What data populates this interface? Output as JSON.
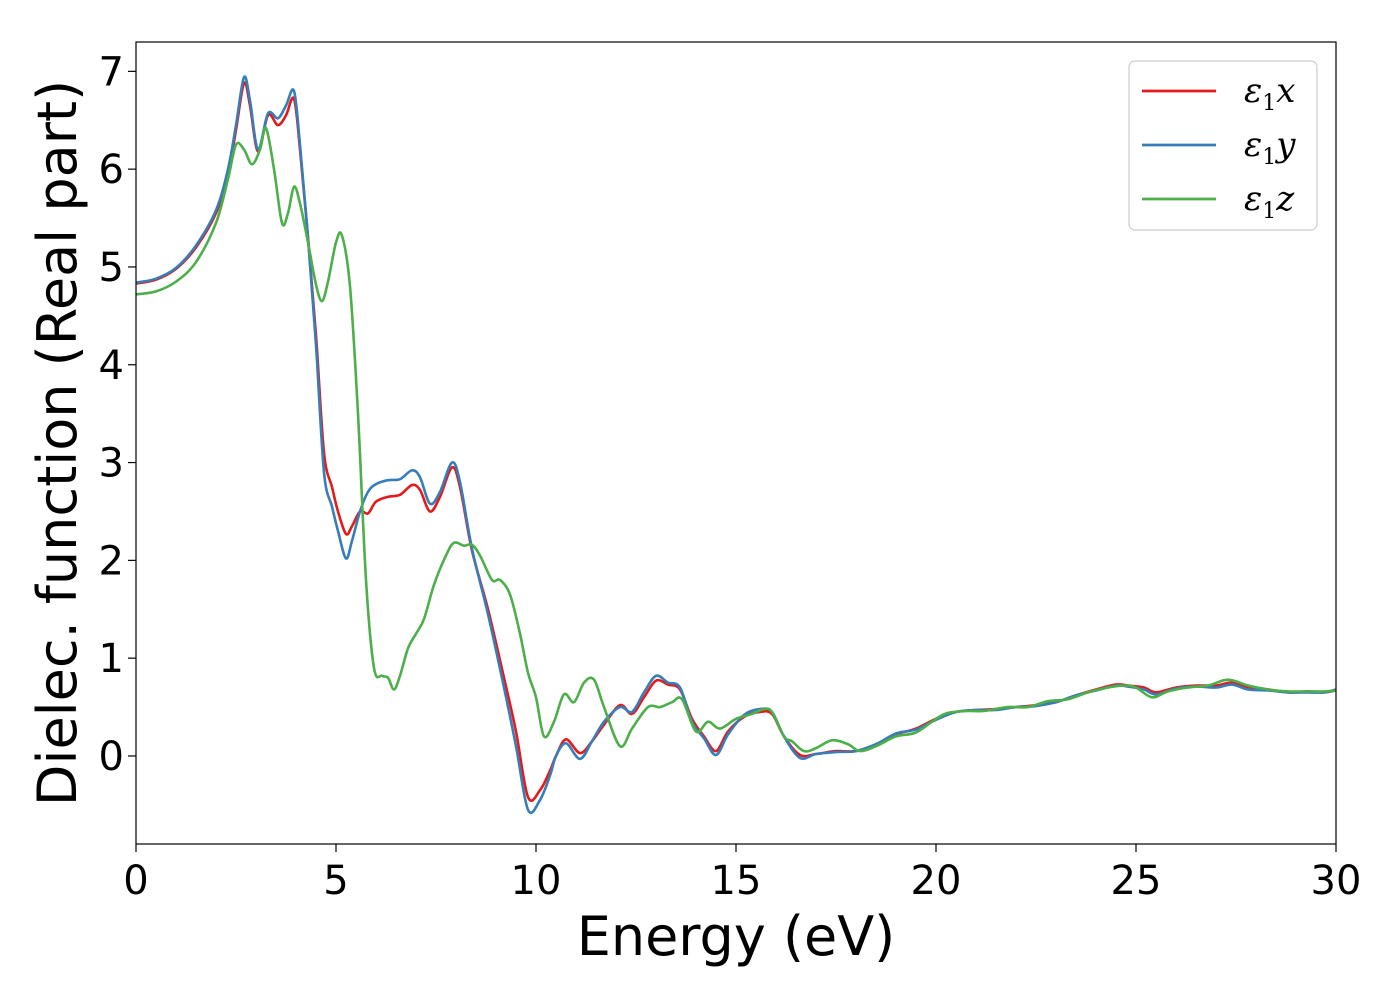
{
  "chart_data": {
    "type": "line",
    "title": "",
    "xlabel": "Energy (eV)",
    "ylabel": "Dielec. function (Real part)",
    "xlim": [
      0,
      30
    ],
    "ylim": [
      -0.9,
      7.3
    ],
    "xticks": [
      0,
      5,
      10,
      15,
      20,
      25,
      30
    ],
    "yticks": [
      0,
      1,
      2,
      3,
      4,
      5,
      6,
      7
    ],
    "grid": false,
    "legend_position": "top-right",
    "series": [
      {
        "name": "ε1x",
        "legend_base": "ε",
        "legend_sub": "1",
        "legend_suffix": "x",
        "color": "#e41a1c",
        "points": [
          [
            0,
            4.83
          ],
          [
            0.5,
            4.87
          ],
          [
            1.0,
            4.98
          ],
          [
            1.5,
            5.2
          ],
          [
            2.0,
            5.55
          ],
          [
            2.3,
            5.95
          ],
          [
            2.5,
            6.4
          ],
          [
            2.7,
            6.88
          ],
          [
            2.85,
            6.65
          ],
          [
            3.05,
            6.18
          ],
          [
            3.3,
            6.55
          ],
          [
            3.55,
            6.45
          ],
          [
            3.75,
            6.55
          ],
          [
            3.95,
            6.72
          ],
          [
            4.1,
            6.2
          ],
          [
            4.3,
            5.3
          ],
          [
            4.5,
            4.3
          ],
          [
            4.7,
            3.1
          ],
          [
            4.9,
            2.75
          ],
          [
            5.05,
            2.5
          ],
          [
            5.25,
            2.27
          ],
          [
            5.4,
            2.35
          ],
          [
            5.6,
            2.5
          ],
          [
            5.8,
            2.48
          ],
          [
            6.0,
            2.6
          ],
          [
            6.3,
            2.65
          ],
          [
            6.6,
            2.67
          ],
          [
            6.9,
            2.77
          ],
          [
            7.1,
            2.72
          ],
          [
            7.35,
            2.5
          ],
          [
            7.6,
            2.65
          ],
          [
            7.9,
            2.95
          ],
          [
            8.1,
            2.75
          ],
          [
            8.4,
            2.1
          ],
          [
            8.8,
            1.5
          ],
          [
            9.2,
            0.8
          ],
          [
            9.5,
            0.25
          ],
          [
            9.8,
            -0.42
          ],
          [
            10.1,
            -0.35
          ],
          [
            10.35,
            -0.15
          ],
          [
            10.5,
            0.0
          ],
          [
            10.75,
            0.17
          ],
          [
            11.1,
            0.03
          ],
          [
            11.4,
            0.15
          ],
          [
            11.7,
            0.32
          ],
          [
            12.1,
            0.52
          ],
          [
            12.4,
            0.43
          ],
          [
            12.7,
            0.6
          ],
          [
            13.0,
            0.77
          ],
          [
            13.3,
            0.73
          ],
          [
            13.6,
            0.68
          ],
          [
            13.9,
            0.38
          ],
          [
            14.2,
            0.2
          ],
          [
            14.5,
            0.05
          ],
          [
            14.8,
            0.25
          ],
          [
            15.2,
            0.4
          ],
          [
            15.6,
            0.45
          ],
          [
            15.9,
            0.43
          ],
          [
            16.2,
            0.2
          ],
          [
            16.6,
            0.01
          ],
          [
            17.0,
            0.02
          ],
          [
            17.5,
            0.05
          ],
          [
            18.0,
            0.05
          ],
          [
            18.5,
            0.12
          ],
          [
            19.0,
            0.22
          ],
          [
            19.5,
            0.28
          ],
          [
            20.0,
            0.38
          ],
          [
            20.5,
            0.45
          ],
          [
            21.0,
            0.47
          ],
          [
            21.5,
            0.48
          ],
          [
            22.0,
            0.5
          ],
          [
            22.5,
            0.52
          ],
          [
            23.0,
            0.55
          ],
          [
            23.5,
            0.62
          ],
          [
            24.0,
            0.68
          ],
          [
            24.5,
            0.73
          ],
          [
            24.8,
            0.72
          ],
          [
            25.2,
            0.7
          ],
          [
            25.5,
            0.65
          ],
          [
            26.0,
            0.7
          ],
          [
            26.5,
            0.72
          ],
          [
            27.0,
            0.72
          ],
          [
            27.4,
            0.75
          ],
          [
            27.8,
            0.7
          ],
          [
            28.3,
            0.68
          ],
          [
            28.8,
            0.65
          ],
          [
            29.3,
            0.66
          ],
          [
            29.7,
            0.65
          ],
          [
            30.0,
            0.67
          ]
        ]
      },
      {
        "name": "ε1y",
        "legend_base": "ε",
        "legend_sub": "1",
        "legend_suffix": "y",
        "color": "#377eb8",
        "points": [
          [
            0,
            4.84
          ],
          [
            0.5,
            4.88
          ],
          [
            1.0,
            4.99
          ],
          [
            1.5,
            5.22
          ],
          [
            2.0,
            5.58
          ],
          [
            2.3,
            6.0
          ],
          [
            2.5,
            6.45
          ],
          [
            2.7,
            6.94
          ],
          [
            2.85,
            6.7
          ],
          [
            3.05,
            6.2
          ],
          [
            3.3,
            6.57
          ],
          [
            3.55,
            6.52
          ],
          [
            3.75,
            6.65
          ],
          [
            3.95,
            6.8
          ],
          [
            4.1,
            6.25
          ],
          [
            4.3,
            5.3
          ],
          [
            4.5,
            4.2
          ],
          [
            4.7,
            2.9
          ],
          [
            4.9,
            2.55
          ],
          [
            5.05,
            2.3
          ],
          [
            5.25,
            2.02
          ],
          [
            5.4,
            2.2
          ],
          [
            5.6,
            2.5
          ],
          [
            5.8,
            2.7
          ],
          [
            6.0,
            2.78
          ],
          [
            6.3,
            2.82
          ],
          [
            6.6,
            2.83
          ],
          [
            6.9,
            2.92
          ],
          [
            7.1,
            2.85
          ],
          [
            7.35,
            2.58
          ],
          [
            7.6,
            2.7
          ],
          [
            7.9,
            3.0
          ],
          [
            8.1,
            2.8
          ],
          [
            8.4,
            2.12
          ],
          [
            8.8,
            1.45
          ],
          [
            9.2,
            0.7
          ],
          [
            9.5,
            0.1
          ],
          [
            9.8,
            -0.55
          ],
          [
            10.1,
            -0.45
          ],
          [
            10.35,
            -0.2
          ],
          [
            10.5,
            0.0
          ],
          [
            10.75,
            0.13
          ],
          [
            11.1,
            -0.03
          ],
          [
            11.4,
            0.15
          ],
          [
            11.7,
            0.35
          ],
          [
            12.1,
            0.5
          ],
          [
            12.4,
            0.45
          ],
          [
            12.7,
            0.65
          ],
          [
            13.0,
            0.82
          ],
          [
            13.3,
            0.75
          ],
          [
            13.6,
            0.7
          ],
          [
            13.9,
            0.35
          ],
          [
            14.2,
            0.18
          ],
          [
            14.5,
            0.01
          ],
          [
            14.8,
            0.22
          ],
          [
            15.2,
            0.42
          ],
          [
            15.6,
            0.48
          ],
          [
            15.9,
            0.45
          ],
          [
            16.2,
            0.2
          ],
          [
            16.6,
            -0.02
          ],
          [
            17.0,
            0.02
          ],
          [
            17.5,
            0.04
          ],
          [
            18.0,
            0.05
          ],
          [
            18.5,
            0.12
          ],
          [
            19.0,
            0.23
          ],
          [
            19.5,
            0.27
          ],
          [
            20.0,
            0.37
          ],
          [
            20.5,
            0.45
          ],
          [
            21.0,
            0.47
          ],
          [
            21.5,
            0.47
          ],
          [
            22.0,
            0.5
          ],
          [
            22.5,
            0.51
          ],
          [
            23.0,
            0.55
          ],
          [
            23.5,
            0.62
          ],
          [
            24.0,
            0.67
          ],
          [
            24.5,
            0.72
          ],
          [
            24.8,
            0.71
          ],
          [
            25.2,
            0.68
          ],
          [
            25.5,
            0.63
          ],
          [
            26.0,
            0.69
          ],
          [
            26.5,
            0.71
          ],
          [
            27.0,
            0.7
          ],
          [
            27.4,
            0.73
          ],
          [
            27.8,
            0.68
          ],
          [
            28.3,
            0.67
          ],
          [
            28.8,
            0.65
          ],
          [
            29.3,
            0.65
          ],
          [
            29.7,
            0.65
          ],
          [
            30.0,
            0.68
          ]
        ]
      },
      {
        "name": "ε1z",
        "legend_base": "ε",
        "legend_sub": "1",
        "legend_suffix": "z",
        "color": "#4daf4a",
        "points": [
          [
            0,
            4.72
          ],
          [
            0.5,
            4.75
          ],
          [
            1.0,
            4.85
          ],
          [
            1.5,
            5.05
          ],
          [
            2.0,
            5.45
          ],
          [
            2.3,
            5.9
          ],
          [
            2.5,
            6.25
          ],
          [
            2.7,
            6.2
          ],
          [
            2.9,
            6.05
          ],
          [
            3.1,
            6.2
          ],
          [
            3.25,
            6.42
          ],
          [
            3.45,
            6.0
          ],
          [
            3.65,
            5.45
          ],
          [
            3.8,
            5.55
          ],
          [
            3.95,
            5.82
          ],
          [
            4.1,
            5.65
          ],
          [
            4.3,
            5.25
          ],
          [
            4.5,
            4.82
          ],
          [
            4.65,
            4.65
          ],
          [
            4.8,
            4.85
          ],
          [
            5.0,
            5.25
          ],
          [
            5.15,
            5.32
          ],
          [
            5.35,
            4.8
          ],
          [
            5.55,
            3.5
          ],
          [
            5.75,
            1.8
          ],
          [
            5.95,
            0.9
          ],
          [
            6.15,
            0.82
          ],
          [
            6.3,
            0.8
          ],
          [
            6.45,
            0.68
          ],
          [
            6.6,
            0.82
          ],
          [
            6.8,
            1.1
          ],
          [
            7.0,
            1.25
          ],
          [
            7.2,
            1.4
          ],
          [
            7.45,
            1.75
          ],
          [
            7.75,
            2.05
          ],
          [
            7.95,
            2.18
          ],
          [
            8.2,
            2.15
          ],
          [
            8.4,
            2.16
          ],
          [
            8.6,
            2.05
          ],
          [
            8.9,
            1.8
          ],
          [
            9.1,
            1.8
          ],
          [
            9.35,
            1.65
          ],
          [
            9.6,
            1.25
          ],
          [
            9.8,
            0.85
          ],
          [
            10.0,
            0.6
          ],
          [
            10.2,
            0.2
          ],
          [
            10.45,
            0.35
          ],
          [
            10.7,
            0.63
          ],
          [
            10.95,
            0.55
          ],
          [
            11.2,
            0.75
          ],
          [
            11.45,
            0.78
          ],
          [
            11.7,
            0.5
          ],
          [
            12.1,
            0.1
          ],
          [
            12.4,
            0.28
          ],
          [
            12.8,
            0.5
          ],
          [
            13.1,
            0.5
          ],
          [
            13.4,
            0.55
          ],
          [
            13.65,
            0.58
          ],
          [
            14.0,
            0.25
          ],
          [
            14.3,
            0.35
          ],
          [
            14.6,
            0.28
          ],
          [
            15.0,
            0.38
          ],
          [
            15.4,
            0.43
          ],
          [
            15.7,
            0.48
          ],
          [
            15.9,
            0.45
          ],
          [
            16.2,
            0.2
          ],
          [
            16.4,
            0.15
          ],
          [
            16.7,
            0.05
          ],
          [
            17.0,
            0.08
          ],
          [
            17.4,
            0.16
          ],
          [
            17.8,
            0.12
          ],
          [
            18.1,
            0.05
          ],
          [
            18.5,
            0.1
          ],
          [
            19.0,
            0.2
          ],
          [
            19.5,
            0.24
          ],
          [
            20.0,
            0.38
          ],
          [
            20.3,
            0.44
          ],
          [
            20.8,
            0.46
          ],
          [
            21.2,
            0.46
          ],
          [
            21.8,
            0.5
          ],
          [
            22.3,
            0.5
          ],
          [
            22.8,
            0.56
          ],
          [
            23.3,
            0.58
          ],
          [
            23.8,
            0.65
          ],
          [
            24.3,
            0.7
          ],
          [
            24.7,
            0.72
          ],
          [
            25.0,
            0.7
          ],
          [
            25.4,
            0.6
          ],
          [
            25.8,
            0.66
          ],
          [
            26.3,
            0.7
          ],
          [
            26.8,
            0.72
          ],
          [
            27.3,
            0.78
          ],
          [
            27.8,
            0.72
          ],
          [
            28.3,
            0.68
          ],
          [
            28.8,
            0.66
          ],
          [
            29.3,
            0.66
          ],
          [
            29.7,
            0.66
          ],
          [
            30.0,
            0.67
          ]
        ]
      }
    ]
  }
}
